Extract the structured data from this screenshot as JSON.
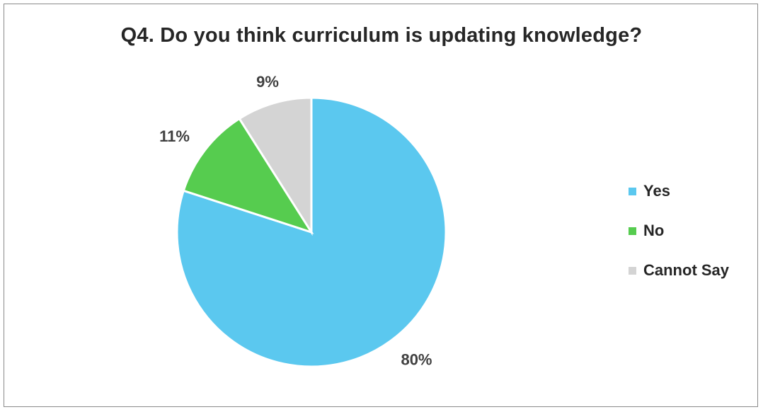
{
  "chart_data": {
    "type": "pie",
    "title": "Q4. Do you think curriculum is updating knowledge?",
    "legend_position": "right",
    "slices": [
      {
        "name": "Yes",
        "value": 80,
        "label": "80%",
        "color": "#5bc8ef"
      },
      {
        "name": "No",
        "value": 11,
        "label": "11%",
        "color": "#56cc4f"
      },
      {
        "name": "Cannot Say",
        "value": 9,
        "label": "9%",
        "color": "#d4d4d4"
      }
    ]
  }
}
